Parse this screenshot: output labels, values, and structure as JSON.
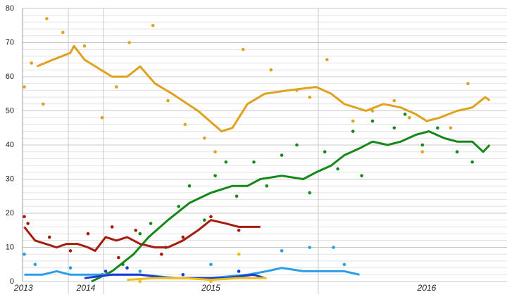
{
  "chart_data": {
    "type": "line",
    "xlim": [
      2013.49,
      2016.87
    ],
    "xticks": [
      {
        "value": 2013.5,
        "label": "2013"
      },
      {
        "value": 2014.5,
        "label": "2014"
      },
      {
        "value": 2015.5,
        "label": "2015"
      },
      {
        "value": 2016.5,
        "label": "2016"
      }
    ],
    "x_boundaries": [
      2014,
      2015,
      2016
    ],
    "ylim": [
      0,
      80
    ],
    "yticks": [
      0,
      10,
      20,
      30,
      40,
      50,
      60,
      70,
      80
    ],
    "ygrid_minor_step": 2,
    "grid": true,
    "series": [
      {
        "color": "#e0a21e",
        "x": [
          2013.65,
          2013.83,
          2014.06,
          2014.16,
          2014.46,
          2015.04,
          2015.11,
          2015.17,
          2015.24,
          2015.32,
          2015.44,
          2015.55,
          2015.6,
          2015.67,
          2015.75,
          2015.86,
          2015.99,
          2016.06,
          2016.12,
          2016.22,
          2016.3,
          2016.38,
          2016.45,
          2016.5,
          2016.56,
          2016.64,
          2016.71,
          2016.77,
          2016.79
        ],
        "values": [
          63,
          65,
          67,
          69,
          65,
          60,
          60,
          63,
          58,
          55,
          50,
          44,
          45,
          52,
          55,
          56,
          57,
          55,
          52,
          50,
          52,
          51,
          49,
          47,
          48,
          50,
          51,
          54,
          53
        ],
        "scatter_x": [
          2013.51,
          2013.59,
          2013.72,
          2013.76,
          2013.94,
          2014.46,
          2014.96,
          2015.06,
          2015.12,
          2015.23,
          2015.3,
          2015.38,
          2015.47,
          2015.52,
          2015.65,
          2015.78,
          2015.9,
          2015.96,
          2016.04,
          2016.16,
          2016.25,
          2016.35,
          2016.42,
          2016.48,
          2016.61,
          2016.69
        ],
        "scatter_y": [
          57,
          64,
          52,
          77,
          73,
          69,
          48,
          57,
          70,
          75,
          53,
          46,
          42,
          38,
          68,
          62,
          56,
          54,
          65,
          47,
          50,
          53,
          48,
          38,
          45,
          58
        ]
      },
      {
        "color": "#14891a",
        "x": [
          2014.66,
          2015.04,
          2015.14,
          2015.21,
          2015.3,
          2015.4,
          2015.5,
          2015.6,
          2015.67,
          2015.73,
          2015.83,
          2015.93,
          2015.99,
          2016.06,
          2016.12,
          2016.19,
          2016.25,
          2016.32,
          2016.38,
          2016.45,
          2016.51,
          2016.58,
          2016.64,
          2016.71,
          2016.76,
          2016.79
        ],
        "values": [
          0,
          3,
          8,
          13,
          18,
          23,
          26,
          28,
          28,
          30,
          31,
          30,
          32,
          34,
          37,
          39,
          41,
          40,
          41,
          43,
          44,
          42,
          41,
          41,
          38,
          40
        ],
        "scatter_x": [
          2014.96,
          2015.09,
          2015.17,
          2015.22,
          2015.29,
          2015.35,
          2015.4,
          2015.47,
          2015.52,
          2015.57,
          2015.62,
          2015.7,
          2015.76,
          2015.83,
          2015.9,
          2015.96,
          2016.03,
          2016.09,
          2016.16,
          2016.2,
          2016.25,
          2016.35,
          2016.4,
          2016.48,
          2016.55,
          2016.64,
          2016.71
        ],
        "scatter_y": [
          2,
          5,
          14,
          17,
          10,
          22,
          28,
          18,
          31,
          35,
          25,
          35,
          28,
          37,
          40,
          26,
          38,
          33,
          44,
          31,
          47,
          45,
          49,
          40,
          45,
          38,
          35
        ]
      },
      {
        "color": "#a51c0e",
        "x": [
          2013.51,
          2013.63,
          2013.75,
          2013.87,
          2013.98,
          2014.26,
          2014.56,
          2014.76,
          2015.01,
          2015.06,
          2015.11,
          2015.17,
          2015.24,
          2015.3,
          2015.37,
          2015.44,
          2015.5,
          2015.57,
          2015.63,
          2015.68,
          2015.73
        ],
        "values": [
          16,
          12,
          11,
          10,
          11,
          11,
          10,
          9,
          13,
          12,
          13,
          11,
          10,
          10,
          12,
          15,
          18,
          17,
          16,
          16,
          16
        ],
        "scatter_x": [
          2013.51,
          2013.55,
          2013.79,
          2014.06,
          2014.56,
          2015.04,
          2015.07,
          2015.15,
          2015.27,
          2015.37,
          2015.5,
          2015.63
        ],
        "scatter_y": [
          19,
          17,
          13,
          9,
          14,
          16,
          7,
          15,
          8,
          13,
          19,
          15
        ]
      },
      {
        "color": "#2b9ee6",
        "x": [
          2013.51,
          2013.71,
          2013.87,
          2014.06,
          2015.01,
          2015.17,
          2015.34,
          2015.5,
          2015.67,
          2015.76,
          2015.83,
          2015.93,
          2016.03,
          2016.12,
          2016.19
        ],
        "values": [
          2,
          2,
          3,
          2,
          2,
          2,
          1,
          1,
          2,
          3,
          4,
          3,
          3,
          3,
          2
        ],
        "scatter_x": [
          2013.51,
          2013.63,
          2014.06,
          2015.17,
          2015.5,
          2015.83,
          2015.96,
          2016.07,
          2016.12,
          2015.7
        ],
        "scatter_y": [
          8,
          5,
          4,
          3,
          5,
          9,
          10,
          10,
          5,
          2
        ]
      },
      {
        "color": "#1d3bd4",
        "x": [
          2014.46,
          2015.04,
          2015.17,
          2015.3,
          2015.44,
          2015.57,
          2015.7,
          2015.75
        ],
        "values": [
          1,
          2,
          2,
          1,
          1,
          1,
          2,
          1
        ],
        "scatter_x": [
          2015.01,
          2015.11,
          2015.37,
          2015.63
        ],
        "scatter_y": [
          3,
          4,
          2,
          3
        ]
      },
      {
        "color": "#f2be12",
        "x": [
          2015.11,
          2015.24,
          2015.37,
          2015.5,
          2015.63,
          2015.76
        ],
        "values": [
          0.5,
          1,
          1,
          0.5,
          1,
          1
        ],
        "scatter_x": [
          2015.17,
          2015.63,
          2015.5
        ],
        "scatter_y": [
          0,
          8,
          0
        ]
      }
    ]
  }
}
